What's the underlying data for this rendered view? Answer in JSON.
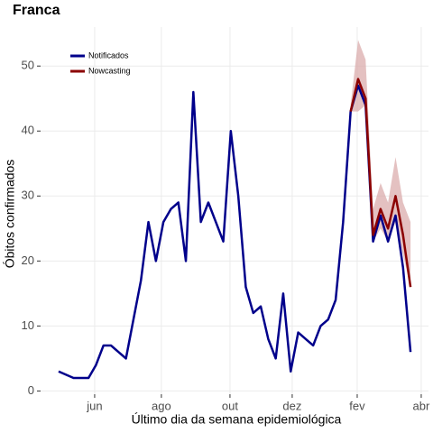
{
  "chart_data": {
    "type": "line",
    "title": "Franca",
    "xlabel": "Último dia da semana epidemiológica",
    "ylabel": "Óbitos confirmados",
    "xlim": [
      -2.4,
      49.4
    ],
    "ylim": [
      -0.5,
      56
    ],
    "xticks": [
      {
        "value": 4.82,
        "label": "jun"
      },
      {
        "value": 13.73,
        "label": "ago"
      },
      {
        "value": 22.89,
        "label": "out"
      },
      {
        "value": 31.2,
        "label": "dez"
      },
      {
        "value": 39.88,
        "label": "fev"
      },
      {
        "value": 48.43,
        "label": "abr"
      }
    ],
    "yticks": [
      0,
      10,
      20,
      30,
      40,
      50
    ],
    "grid": true,
    "legend": "top-left",
    "series": [
      {
        "name": "Notificados",
        "color": "#00008b",
        "x": [
          0,
          1,
          2,
          3,
          4,
          5,
          6,
          7,
          8,
          9,
          10,
          11,
          12,
          13,
          14,
          15,
          16,
          17,
          18,
          19,
          20,
          21,
          22,
          23,
          24,
          25,
          26,
          27,
          28,
          29,
          30,
          31,
          32,
          33,
          34,
          35,
          36,
          37,
          38,
          39,
          40,
          41,
          42,
          43,
          44,
          45,
          46,
          47
        ],
        "values": [
          3,
          2.5,
          2,
          2,
          2,
          4,
          7,
          7,
          6,
          5,
          11,
          17,
          26,
          20,
          26,
          28,
          29,
          20,
          46,
          26,
          29,
          26,
          23,
          40,
          30,
          16,
          12,
          13,
          8,
          5,
          15,
          3,
          9,
          8,
          7,
          10,
          11,
          14,
          26,
          43,
          47,
          44,
          23,
          27,
          23,
          27,
          19,
          6
        ]
      },
      {
        "name": "Nowcasting",
        "color": "#8b0000",
        "band_color": "#d9a6a6",
        "x": [
          39,
          40,
          41,
          42,
          43,
          44,
          45,
          46,
          47
        ],
        "values": [
          43,
          48,
          45,
          24,
          28,
          25,
          30,
          24,
          16
        ],
        "lower": [
          43,
          43,
          44,
          23,
          25,
          23,
          26,
          21,
          16
        ],
        "upper": [
          44,
          54,
          51,
          28,
          32,
          29,
          36,
          29,
          26
        ]
      }
    ]
  }
}
